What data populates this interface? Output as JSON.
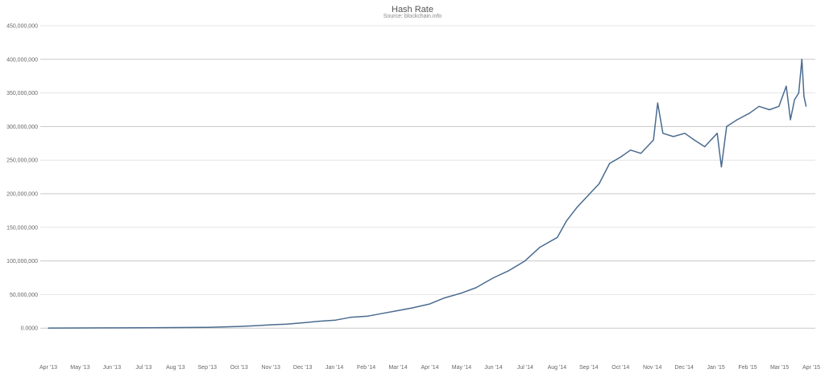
{
  "chart_data": {
    "type": "line",
    "title": "Hash Rate",
    "subtitle": "Source: blockchain.info",
    "xlabel": "",
    "ylabel": "",
    "ylim": [
      -50000000,
      450000000
    ],
    "y_ticks": [
      {
        "value": 0,
        "label": "0.0000"
      },
      {
        "value": 50000000,
        "label": "50,000,000"
      },
      {
        "value": 100000000,
        "label": "100,000,000"
      },
      {
        "value": 150000000,
        "label": "150,000,000"
      },
      {
        "value": 200000000,
        "label": "200,000,000"
      },
      {
        "value": 250000000,
        "label": "250,000,000"
      },
      {
        "value": 300000000,
        "label": "300,000,000"
      },
      {
        "value": 350000000,
        "label": "350,000,000"
      },
      {
        "value": 400000000,
        "label": "400,000,000"
      },
      {
        "value": 450000000,
        "label": "450,000,000"
      }
    ],
    "x_ticks": [
      "Apr '13",
      "May '13",
      "Jun '13",
      "Jul '13",
      "Aug '13",
      "Sep '13",
      "Oct '13",
      "Nov '13",
      "Dec '13",
      "Jan '14",
      "Feb '14",
      "Mar '14",
      "Apr '14",
      "May '14",
      "Jun '14",
      "Jul '14",
      "Aug '14",
      "Sep '14",
      "Oct '14",
      "Nov '14",
      "Dec '14",
      "Jan '15",
      "Feb '15",
      "Mar '15",
      "Apr '15"
    ],
    "grid": true,
    "line_color": "#4a6b8f",
    "series": [
      {
        "name": "",
        "x": [
          "2013-04-01",
          "2013-05-01",
          "2013-06-01",
          "2013-07-01",
          "2013-08-01",
          "2013-09-01",
          "2013-10-01",
          "2013-10-15",
          "2013-11-01",
          "2013-11-15",
          "2013-12-01",
          "2013-12-15",
          "2014-01-01",
          "2014-01-15",
          "2014-02-01",
          "2014-02-15",
          "2014-03-01",
          "2014-03-15",
          "2014-04-01",
          "2014-04-15",
          "2014-05-01",
          "2014-05-15",
          "2014-06-01",
          "2014-06-15",
          "2014-07-01",
          "2014-07-15",
          "2014-08-01",
          "2014-08-10",
          "2014-08-20",
          "2014-09-01",
          "2014-09-10",
          "2014-09-20",
          "2014-10-01",
          "2014-10-10",
          "2014-10-20",
          "2014-11-01",
          "2014-11-05",
          "2014-11-10",
          "2014-11-20",
          "2014-12-01",
          "2014-12-10",
          "2014-12-20",
          "2015-01-01",
          "2015-01-05",
          "2015-01-10",
          "2015-01-20",
          "2015-02-01",
          "2015-02-10",
          "2015-02-20",
          "2015-03-01",
          "2015-03-08",
          "2015-03-12",
          "2015-03-16",
          "2015-03-20",
          "2015-03-23",
          "2015-03-25",
          "2015-03-27"
        ],
        "values": [
          100000,
          200000,
          300000,
          500000,
          800000,
          1200000,
          2500000,
          3500000,
          5000000,
          6000000,
          8000000,
          10000000,
          12000000,
          16000000,
          18000000,
          22000000,
          26000000,
          30000000,
          36000000,
          45000000,
          52000000,
          60000000,
          75000000,
          85000000,
          100000000,
          120000000,
          135000000,
          160000000,
          180000000,
          200000000,
          215000000,
          245000000,
          255000000,
          265000000,
          260000000,
          280000000,
          335000000,
          290000000,
          285000000,
          290000000,
          280000000,
          270000000,
          290000000,
          240000000,
          300000000,
          310000000,
          320000000,
          330000000,
          325000000,
          330000000,
          360000000,
          310000000,
          340000000,
          350000000,
          400000000,
          345000000,
          330000000
        ]
      }
    ]
  }
}
